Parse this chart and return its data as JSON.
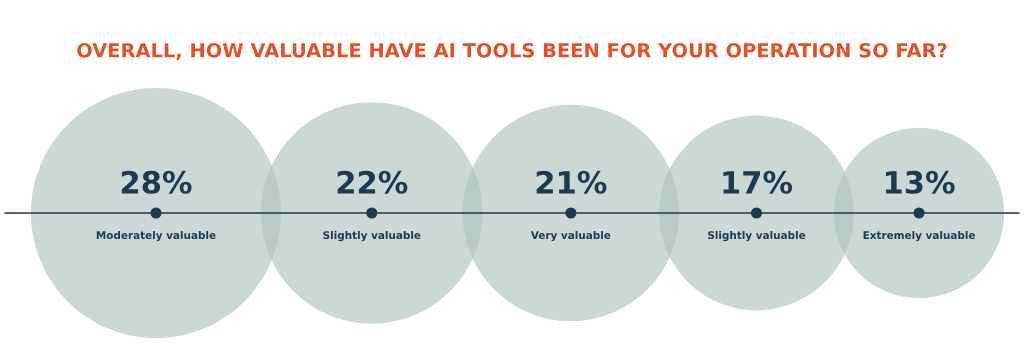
{
  "chart_data": {
    "type": "other",
    "title": "OVERALL, HOW VALUABLE HAVE AI TOOLS BEEN FOR YOUR OPERATION SO FAR?",
    "categories": [
      "Moderately valuable",
      "Slightly valuable",
      "Very valuable",
      "Slightly valuable",
      "Extremely valuable"
    ],
    "values": [
      28,
      22,
      21,
      17,
      13
    ],
    "color": "#a9c0bb",
    "value_labels": [
      "28%",
      "22%",
      "21%",
      "17%",
      "13%"
    ]
  }
}
